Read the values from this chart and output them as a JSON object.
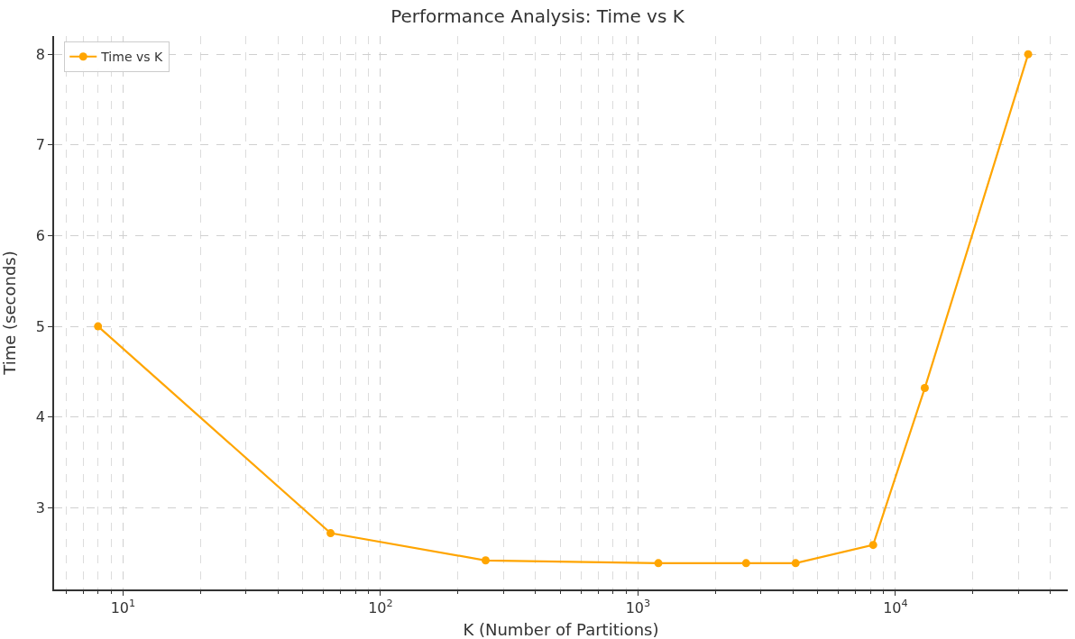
{
  "chart_data": {
    "type": "line",
    "title": "Performance Analysis: Time vs K",
    "xlabel": "K (Number of Partitions)",
    "ylabel": "Time (seconds)",
    "x": [
      8,
      64,
      256,
      1200,
      2630,
      4096,
      8192,
      13000,
      32768
    ],
    "series": [
      {
        "name": "Time vs K",
        "color": "#ffa500",
        "values": [
          5.0,
          2.72,
          2.42,
          2.39,
          2.39,
          2.39,
          2.59,
          4.32,
          8.0
        ]
      }
    ],
    "log": "x",
    "xlim": [
      5.4,
      46700
    ],
    "ylim": [
      2.1,
      8.2
    ],
    "xticks": [
      {
        "value": 10,
        "label": "10$^{1}$"
      },
      {
        "value": 100,
        "label": "10$^{2}$"
      },
      {
        "value": 1000,
        "label": "10$^{3}$"
      },
      {
        "value": 10000,
        "label": "10$^{4}$"
      }
    ],
    "yticks": [
      3,
      4,
      5,
      6,
      7,
      8
    ],
    "grid": true,
    "legend": "top left",
    "marker": "circle",
    "line_style": "solid"
  }
}
